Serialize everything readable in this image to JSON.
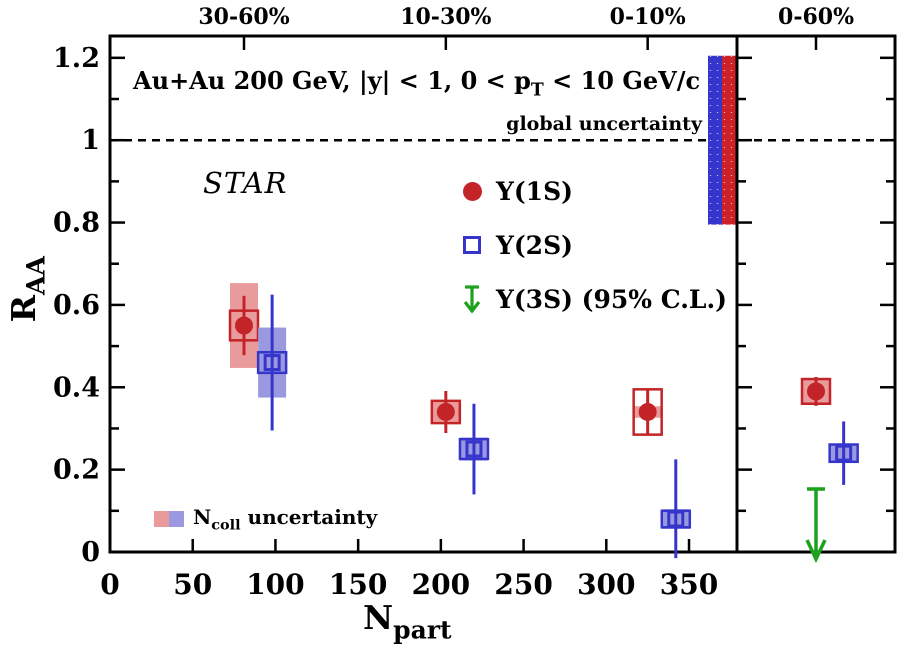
{
  "chart_data": {
    "type": "scatter",
    "title_parts": {
      "t1": "Au+Au 200 GeV, |y| < 1, 0 < p",
      "t2": "T",
      "t3": " < 10 GeV/c"
    },
    "watermark": "STAR",
    "xlabel_parts": {
      "main": "N",
      "sub": "part"
    },
    "ylabel_parts": {
      "main": "R",
      "sub": "AA"
    },
    "xlim": [
      0,
      379
    ],
    "ylim": [
      0,
      1.253
    ],
    "x_ticks": [
      0,
      50,
      100,
      150,
      200,
      250,
      300,
      350
    ],
    "x_tick_labels": [
      "0",
      "50",
      "100",
      "150",
      "200",
      "250",
      "300",
      "350"
    ],
    "y_ticks": [
      0,
      0.2,
      0.4,
      0.6,
      0.8,
      1.0,
      1.2
    ],
    "y_tick_labels": [
      "0",
      "0.2",
      "0.4",
      "0.6",
      "0.8",
      "1",
      "1.2"
    ],
    "y_minor_step": 0.1,
    "reference_line_y": 1.0,
    "grid": false,
    "centrality_labels": [
      {
        "text": "30-60%",
        "npart": 81
      },
      {
        "text": "10-30%",
        "npart": 203
      },
      {
        "text": "0-10%",
        "npart": 325
      }
    ],
    "right_panel_label": {
      "text": "0-60%",
      "x_frac": 0.5
    },
    "series": [
      {
        "name": "Υ(1S)",
        "marker": "filled-circle",
        "color": "#c22428",
        "band_color": "#e99a9a",
        "points": [
          {
            "panel": "main",
            "npart": 81,
            "raa": 0.55,
            "stat": 0.072,
            "sys": 0.036,
            "ncoll": 0.103
          },
          {
            "panel": "main",
            "npart": 203,
            "raa": 0.34,
            "stat": 0.051,
            "sys": 0.027,
            "ncoll": 0.024
          },
          {
            "panel": "main",
            "npart": 325,
            "raa": 0.34,
            "stat": 0.057,
            "sys": 0.055,
            "ncoll": 0.014
          },
          {
            "panel": "right",
            "x_frac": 0.5,
            "raa": 0.39,
            "stat": 0.035,
            "sys": 0.03,
            "ncoll": 0.03
          }
        ]
      },
      {
        "name": "Υ(2S)",
        "marker": "open-square",
        "color": "#3534cb",
        "band_color": "#9a99e0",
        "points": [
          {
            "panel": "main",
            "npart": 98,
            "raa": 0.46,
            "stat": 0.165,
            "sys": 0.025,
            "ncoll": 0.085
          },
          {
            "panel": "main",
            "npart": 220,
            "raa": 0.25,
            "stat": 0.11,
            "sys": 0.024,
            "ncoll": 0.028
          },
          {
            "panel": "main",
            "npart": 342,
            "raa": 0.08,
            "stat_up": 0.145,
            "stat_down": 0.095,
            "sys": 0.02,
            "ncoll": 0.024
          },
          {
            "panel": "right",
            "x_frac": 0.675,
            "raa": 0.24,
            "stat": 0.077,
            "sys": 0.021,
            "ncoll": 0.021
          }
        ]
      },
      {
        "name": "Υ(3S) (95% C.L.)",
        "marker": "down-arrow",
        "color": "#1ca21c",
        "points": [
          {
            "panel": "right",
            "x_frac": 0.5,
            "upper_limit": 0.153,
            "limit_to": 0
          }
        ]
      }
    ],
    "global_uncertainty": {
      "label": "global uncertainty",
      "y_range": [
        0.795,
        1.205
      ],
      "colors": [
        "#3534cb",
        "#cc2127"
      ]
    },
    "ncoll_legend_parts": {
      "n": "N",
      "sub": "coll",
      "rest": " uncertainty"
    }
  }
}
